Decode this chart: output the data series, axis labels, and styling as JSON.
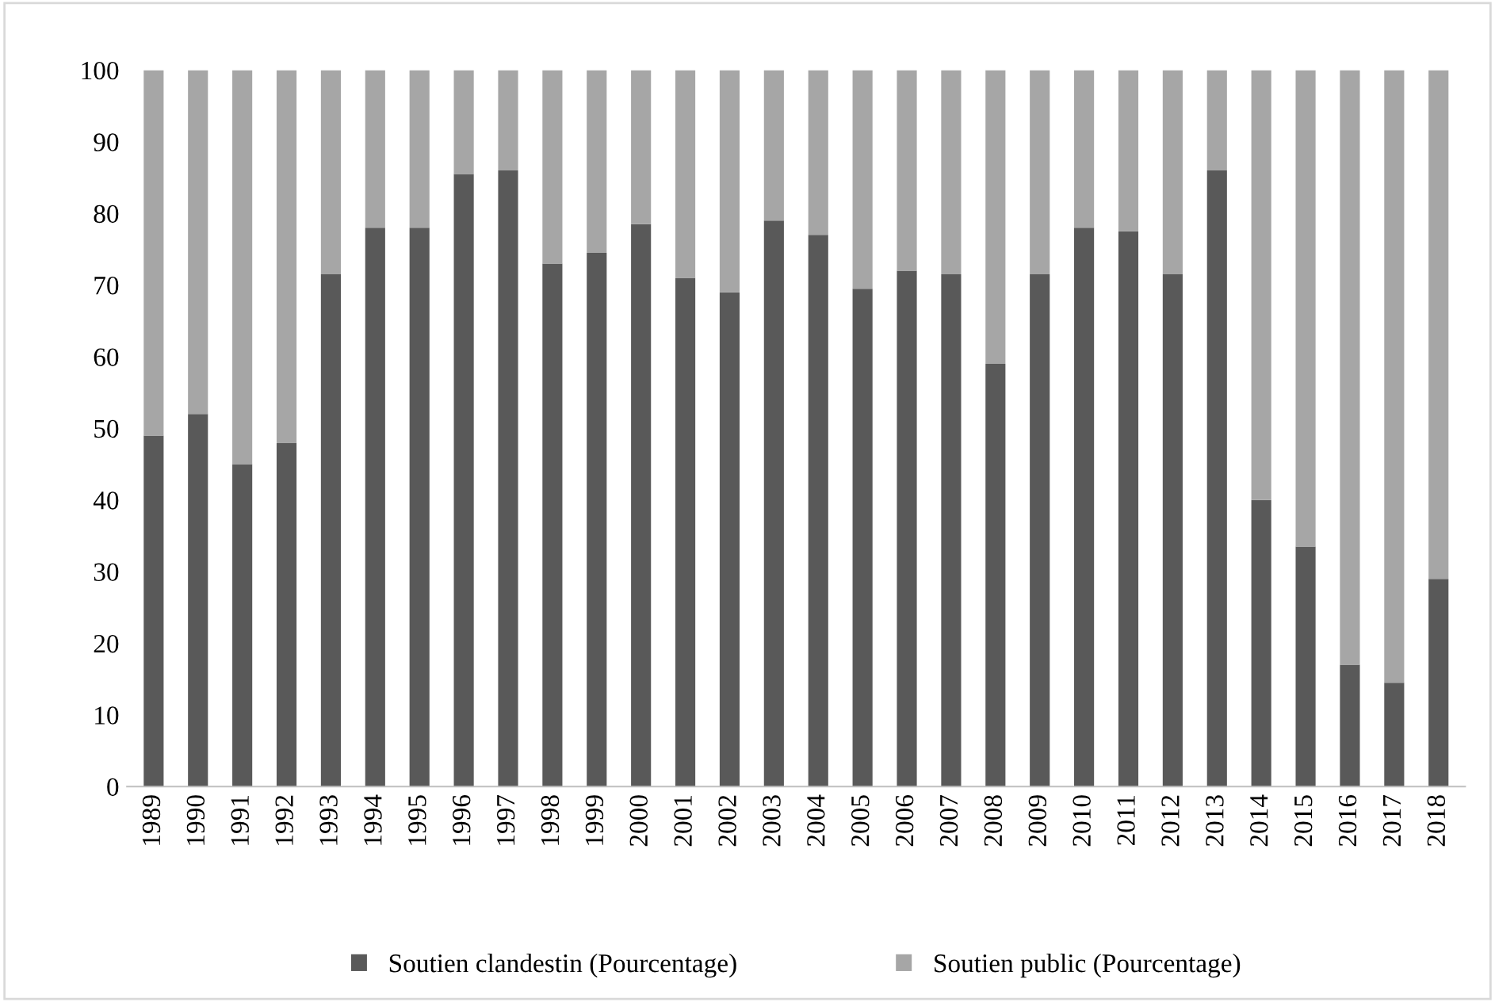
{
  "chart_data": {
    "type": "bar",
    "stacked": true,
    "categories": [
      "1989",
      "1990",
      "1991",
      "1992",
      "1993",
      "1994",
      "1995",
      "1996",
      "1997",
      "1998",
      "1999",
      "2000",
      "2001",
      "2002",
      "2003",
      "2004",
      "2005",
      "2006",
      "2007",
      "2008",
      "2009",
      "2010",
      "2011",
      "2012",
      "2013",
      "2014",
      "2015",
      "2016",
      "2017",
      "2018"
    ],
    "series": [
      {
        "name": "Soutien clandestin (Pourcentage)",
        "color": "#595959",
        "values": [
          49,
          52,
          45,
          48,
          71.5,
          78,
          78,
          85.5,
          86,
          73,
          74.5,
          78.5,
          71,
          69,
          79,
          77,
          69.5,
          72,
          71.5,
          59,
          71.5,
          78,
          77.5,
          71.5,
          86,
          40,
          33.5,
          17,
          14.5,
          29
        ]
      },
      {
        "name": "Soutien public (Pourcentage)",
        "color": "#a6a6a6",
        "values": [
          51,
          48,
          55,
          52,
          28.5,
          22,
          22,
          14.5,
          14,
          27,
          25.5,
          21.5,
          29,
          31,
          21,
          23,
          30.5,
          28,
          28.5,
          41,
          28.5,
          22,
          22.5,
          28.5,
          14,
          60,
          66.5,
          83,
          85.5,
          71
        ]
      }
    ],
    "ylim": [
      0,
      100
    ],
    "yticks": [
      0,
      10,
      20,
      30,
      40,
      50,
      60,
      70,
      80,
      90,
      100
    ],
    "grid": false,
    "legend": "bottom"
  }
}
